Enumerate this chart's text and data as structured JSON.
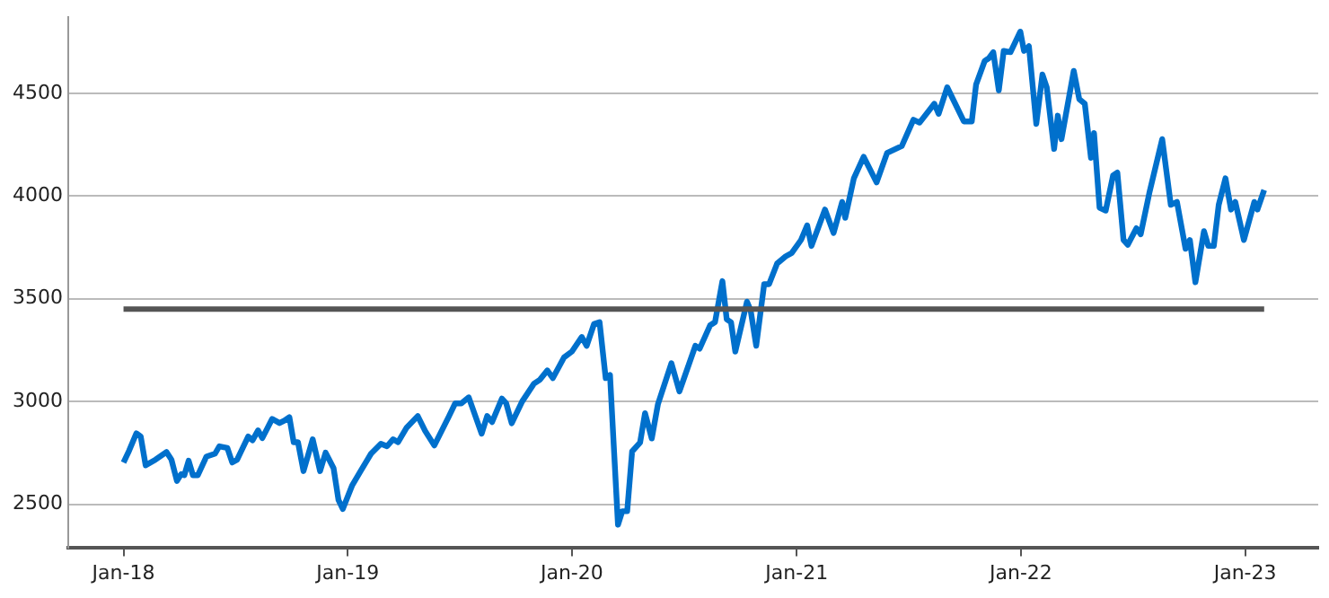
{
  "chart_data": {
    "type": "line",
    "grid": "y",
    "legend": false,
    "marker": "none",
    "line_style": "solid",
    "xlim": [
      "2017-10-03",
      "2023-04-30"
    ],
    "xticks": [
      {
        "value": "2018-01-01",
        "label": "Jan-18"
      },
      {
        "value": "2019-01-01",
        "label": "Jan-19"
      },
      {
        "value": "2020-01-01",
        "label": "Jan-20"
      },
      {
        "value": "2021-01-01",
        "label": "Jan-21"
      },
      {
        "value": "2022-01-01",
        "label": "Jan-22"
      },
      {
        "value": "2023-01-01",
        "label": "Jan-23"
      }
    ],
    "ylim": [
      2290,
      4870
    ],
    "yticks": [
      2500,
      3000,
      3500,
      4000,
      4500
    ],
    "ref_lines": [
      {
        "axis": "y",
        "value": 3450,
        "color": "#555555"
      }
    ],
    "series": [
      {
        "color": "#0070cc",
        "x": [
          "2018-01-01",
          "2018-01-10",
          "2018-01-22",
          "2018-01-29",
          "2018-02-06",
          "2018-02-22",
          "2018-03-12",
          "2018-03-20",
          "2018-03-29",
          "2018-04-05",
          "2018-04-10",
          "2018-04-17",
          "2018-04-24",
          "2018-05-02",
          "2018-05-16",
          "2018-05-30",
          "2018-06-06",
          "2018-06-19",
          "2018-06-27",
          "2018-07-05",
          "2018-07-23",
          "2018-07-30",
          "2018-08-08",
          "2018-08-15",
          "2018-08-31",
          "2018-09-12",
          "2018-09-20",
          "2018-09-28",
          "2018-10-05",
          "2018-10-12",
          "2018-10-21",
          "2018-11-05",
          "2018-11-17",
          "2018-11-26",
          "2018-12-09",
          "2018-12-17",
          "2018-12-24",
          "2019-01-08",
          "2019-01-22",
          "2019-02-08",
          "2019-02-24",
          "2019-03-06",
          "2019-03-16",
          "2019-03-24",
          "2019-04-07",
          "2019-04-25",
          "2019-05-07",
          "2019-05-22",
          "2019-06-15",
          "2019-06-25",
          "2019-07-05",
          "2019-07-17",
          "2019-08-07",
          "2019-08-16",
          "2019-08-24",
          "2019-09-09",
          "2019-09-16",
          "2019-09-25",
          "2019-10-12",
          "2019-10-31",
          "2019-11-10",
          "2019-11-22",
          "2019-12-01",
          "2019-12-19",
          "2020-01-01",
          "2020-01-17",
          "2020-01-25",
          "2020-02-06",
          "2020-02-15",
          "2020-02-25",
          "2020-03-03",
          "2020-03-16",
          "2020-03-23",
          "2020-03-31",
          "2020-04-08",
          "2020-04-21",
          "2020-04-29",
          "2020-05-10",
          "2020-05-20",
          "2020-06-11",
          "2020-06-24",
          "2020-07-20",
          "2020-07-27",
          "2020-08-13",
          "2020-08-21",
          "2020-09-02",
          "2020-09-09",
          "2020-09-16",
          "2020-09-23",
          "2020-10-12",
          "2020-10-18",
          "2020-10-27",
          "2020-11-09",
          "2020-11-17",
          "2020-11-30",
          "2020-12-14",
          "2020-12-24",
          "2021-01-08",
          "2021-01-18",
          "2021-01-25",
          "2021-02-16",
          "2021-03-02",
          "2021-03-16",
          "2021-03-21",
          "2021-04-04",
          "2021-04-20",
          "2021-05-11",
          "2021-05-28",
          "2021-06-21",
          "2021-07-10",
          "2021-07-20",
          "2021-08-13",
          "2021-08-20",
          "2021-09-03",
          "2021-09-30",
          "2021-10-13",
          "2021-10-20",
          "2021-11-03",
          "2021-11-10",
          "2021-11-17",
          "2021-11-26",
          "2021-12-04",
          "2021-12-15",
          "2021-12-31",
          "2022-01-06",
          "2022-01-14",
          "2022-01-26",
          "2022-02-05",
          "2022-02-12",
          "2022-02-24",
          "2022-03-02",
          "2022-03-08",
          "2022-03-28",
          "2022-04-06",
          "2022-04-15",
          "2022-04-25",
          "2022-04-30",
          "2022-05-09",
          "2022-05-19",
          "2022-05-31",
          "2022-06-07",
          "2022-06-17",
          "2022-06-24",
          "2022-07-08",
          "2022-07-15",
          "2022-07-29",
          "2022-08-19",
          "2022-09-02",
          "2022-09-12",
          "2022-09-26",
          "2022-10-03",
          "2022-10-12",
          "2022-10-26",
          "2022-11-02",
          "2022-11-11",
          "2022-11-19",
          "2022-11-30",
          "2022-12-09",
          "2022-12-16",
          "2022-12-30",
          "2023-01-16",
          "2023-01-21",
          "2023-02-01"
        ],
        "values": [
          2703,
          2760,
          2845,
          2830,
          2689,
          2717,
          2754,
          2717,
          2613,
          2647,
          2641,
          2712,
          2641,
          2641,
          2732,
          2746,
          2782,
          2774,
          2703,
          2717,
          2830,
          2811,
          2859,
          2822,
          2915,
          2895,
          2907,
          2924,
          2802,
          2802,
          2661,
          2816,
          2661,
          2751,
          2675,
          2520,
          2477,
          2590,
          2661,
          2746,
          2794,
          2782,
          2816,
          2802,
          2873,
          2929,
          2857,
          2786,
          2929,
          2991,
          2991,
          3020,
          2843,
          2929,
          2900,
          3014,
          2991,
          2894,
          3000,
          3086,
          3106,
          3151,
          3114,
          3214,
          3243,
          3314,
          3271,
          3377,
          3386,
          3114,
          3129,
          2400,
          2466,
          2466,
          2757,
          2800,
          2943,
          2820,
          2986,
          3186,
          3049,
          3271,
          3257,
          3371,
          3386,
          3586,
          3400,
          3386,
          3243,
          3486,
          3443,
          3271,
          3571,
          3571,
          3671,
          3706,
          3723,
          3786,
          3857,
          3757,
          3934,
          3820,
          3971,
          3894,
          4086,
          4191,
          4066,
          4209,
          4243,
          4371,
          4357,
          4449,
          4400,
          4529,
          4363,
          4363,
          4543,
          4657,
          4671,
          4700,
          4514,
          4706,
          4700,
          4800,
          4706,
          4729,
          4351,
          4591,
          4529,
          4229,
          4391,
          4277,
          4609,
          4471,
          4449,
          4186,
          4306,
          3943,
          3929,
          4100,
          4114,
          3786,
          3763,
          3843,
          3814,
          4014,
          4277,
          3957,
          3971,
          3743,
          3786,
          3580,
          3829,
          3757,
          3757,
          3957,
          4086,
          3934,
          3971,
          3786,
          3971,
          3934,
          4029
        ]
      }
    ]
  }
}
